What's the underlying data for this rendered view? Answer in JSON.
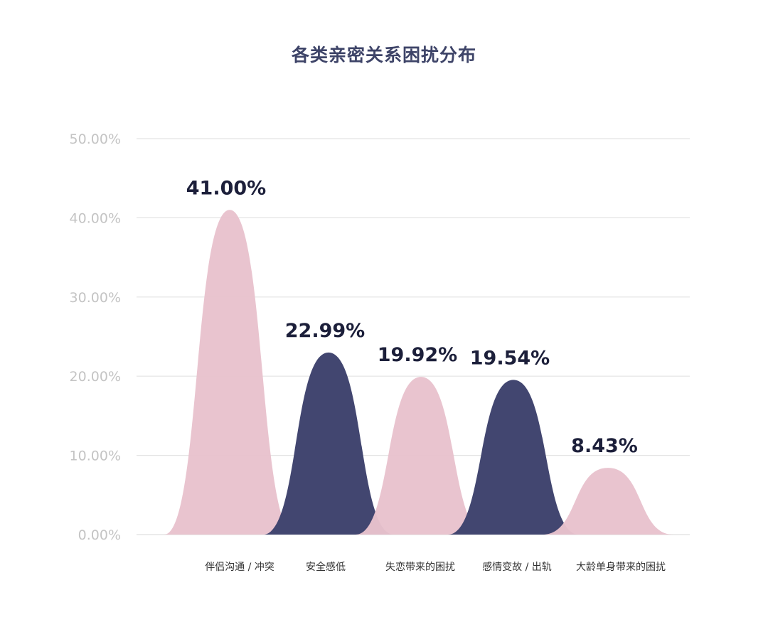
{
  "chart_data": {
    "type": "area",
    "title": "各类亲密关系困扰分布",
    "categories": [
      "伴侣沟通 / 冲突",
      "安全感低",
      "失恋带来的困扰",
      "感情变故 / 出轨",
      "大龄单身带来的困扰"
    ],
    "values": [
      41.0,
      22.99,
      19.92,
      19.54,
      8.43
    ],
    "value_labels": [
      "41.00%",
      "22.99%",
      "19.92%",
      "19.54%",
      "8.43%"
    ],
    "yticks": [
      "0.00%",
      "10.00%",
      "20.00%",
      "30.00%",
      "40.00%",
      "50.00%"
    ],
    "ylim": [
      0,
      50
    ],
    "grid": true,
    "colors": [
      "#e8c2cd",
      "#424670",
      "#e8c2cd",
      "#424670",
      "#e8c2cd"
    ],
    "label_color": "#1c1f3a",
    "axis_label_color": "#c4c4c4"
  }
}
